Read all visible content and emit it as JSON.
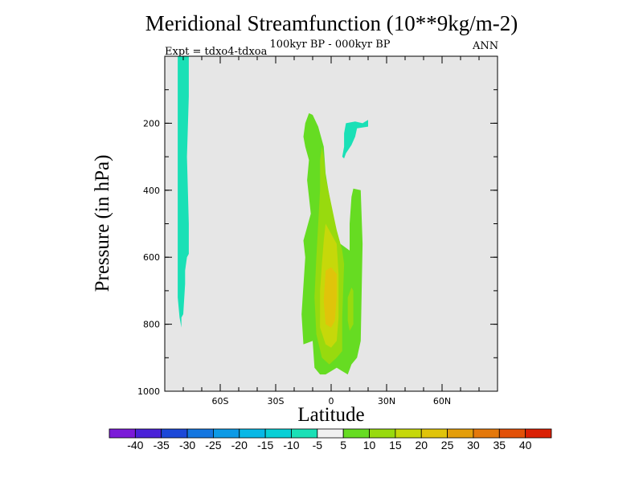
{
  "chart_data": {
    "type": "contour",
    "title": "Meridional Streamfunction (10**9kg/m-2)",
    "subtitle_center": "100kyr BP - 000kyr BP",
    "subtitle_left": "Expt = tdxo4-tdxoa",
    "subtitle_right": "ANN",
    "xlabel": "Latitude",
    "ylabel": "Pressure (in hPa)",
    "xlim": [
      -90,
      90
    ],
    "ylim": [
      1000,
      0
    ],
    "x_ticks": [
      {
        "value": -60,
        "label": "60S"
      },
      {
        "value": -30,
        "label": "30S"
      },
      {
        "value": 0,
        "label": "0"
      },
      {
        "value": 30,
        "label": "30N"
      },
      {
        "value": 60,
        "label": "60N"
      }
    ],
    "y_ticks": [
      {
        "value": 200,
        "label": "200"
      },
      {
        "value": 400,
        "label": "400"
      },
      {
        "value": 600,
        "label": "600"
      },
      {
        "value": 800,
        "label": "800"
      },
      {
        "value": 1000,
        "label": "1000"
      }
    ],
    "background_color": "#e6e6e6",
    "levels": [
      -40,
      -35,
      -30,
      -25,
      -20,
      -15,
      -10,
      -5,
      5,
      10,
      15,
      20,
      25,
      30,
      35,
      40
    ],
    "level_labels": [
      "-40",
      "-35",
      "-30",
      "-25",
      "-20",
      "-15",
      "-10",
      "-5",
      "5",
      "10",
      "15",
      "20",
      "25",
      "30",
      "35",
      "40"
    ],
    "colors": [
      "#7b1ad8",
      "#4a22d8",
      "#1c48d8",
      "#1476e0",
      "#0c9ae6",
      "#08b8e6",
      "#08cfd6",
      "#1ae0b6",
      "#f0f0f0",
      "#66dc22",
      "#98da0e",
      "#c6d80a",
      "#e0c40a",
      "#e49e0a",
      "#e4780a",
      "#e25008",
      "#da2004"
    ],
    "regions": [
      {
        "name": "SH high-lat negative cell",
        "level_range": [
          -10,
          -5
        ],
        "points": [
          [
            -83,
            0
          ],
          [
            -77,
            0
          ],
          [
            -77,
            120
          ],
          [
            -78,
            300
          ],
          [
            -77,
            500
          ],
          [
            -77,
            590
          ],
          [
            -78,
            600
          ],
          [
            -79,
            640
          ],
          [
            -79,
            680
          ],
          [
            -80,
            770
          ],
          [
            -81,
            780
          ],
          [
            -81,
            810
          ],
          [
            -82,
            780
          ],
          [
            -83,
            720
          ],
          [
            -83,
            680
          ],
          [
            -83,
            400
          ]
        ]
      },
      {
        "name": "NH upper negative cell",
        "level_range": [
          -10,
          -5
        ],
        "points": [
          [
            8,
            200
          ],
          [
            13,
            195
          ],
          [
            17,
            200
          ],
          [
            20,
            190
          ],
          [
            20,
            210
          ],
          [
            14,
            215
          ],
          [
            13,
            240
          ],
          [
            11,
            265
          ],
          [
            8,
            290
          ],
          [
            7,
            305
          ],
          [
            6,
            300
          ],
          [
            7,
            270
          ],
          [
            7,
            230
          ]
        ]
      },
      {
        "name": "main positive cell",
        "level_range": [
          5,
          10
        ],
        "points": [
          [
            -15,
            240
          ],
          [
            -14,
            200
          ],
          [
            -12,
            170
          ],
          [
            -10,
            175
          ],
          [
            -7,
            210
          ],
          [
            -4,
            270
          ],
          [
            -3,
            350
          ],
          [
            0,
            450
          ],
          [
            3,
            520
          ],
          [
            5,
            560
          ],
          [
            10,
            580
          ],
          [
            10,
            500
          ],
          [
            11,
            420
          ],
          [
            12,
            395
          ],
          [
            16,
            400
          ],
          [
            17,
            560
          ],
          [
            16,
            850
          ],
          [
            14,
            900
          ],
          [
            11,
            920
          ],
          [
            9,
            950
          ],
          [
            6,
            940
          ],
          [
            3,
            930
          ],
          [
            0,
            940
          ],
          [
            -3,
            950
          ],
          [
            -6,
            950
          ],
          [
            -9,
            930
          ],
          [
            -10,
            850
          ],
          [
            -15,
            860
          ],
          [
            -16,
            770
          ],
          [
            -14,
            600
          ],
          [
            -15,
            550
          ],
          [
            -11,
            470
          ],
          [
            -13,
            370
          ],
          [
            -12,
            310
          ],
          [
            -14,
            270
          ]
        ]
      },
      {
        "name": "positive core 10-15",
        "level_range": [
          10,
          15
        ],
        "points": [
          [
            -6,
            310
          ],
          [
            -5,
            270
          ],
          [
            -4,
            300
          ],
          [
            -3,
            360
          ],
          [
            0,
            440
          ],
          [
            3,
            520
          ],
          [
            6,
            580
          ],
          [
            7,
            620
          ],
          [
            6,
            780
          ],
          [
            6,
            880
          ],
          [
            3,
            900
          ],
          [
            -1,
            920
          ],
          [
            -5,
            900
          ],
          [
            -8,
            830
          ],
          [
            -9,
            720
          ],
          [
            -8,
            600
          ],
          [
            -7,
            500
          ],
          [
            -6,
            400
          ]
        ]
      },
      {
        "name": "positive core 15-20",
        "level_range": [
          15,
          20
        ],
        "points": [
          [
            -4,
            550
          ],
          [
            -3,
            500
          ],
          [
            0,
            530
          ],
          [
            3,
            560
          ],
          [
            4,
            650
          ],
          [
            4,
            780
          ],
          [
            3,
            850
          ],
          [
            0,
            870
          ],
          [
            -3,
            860
          ],
          [
            -6,
            810
          ],
          [
            -6,
            700
          ],
          [
            -5,
            620
          ]
        ]
      },
      {
        "name": "positive core 20-25",
        "level_range": [
          20,
          25
        ],
        "points": [
          [
            -3,
            640
          ],
          [
            0,
            630
          ],
          [
            3,
            650
          ],
          [
            3,
            720
          ],
          [
            2,
            790
          ],
          [
            0,
            810
          ],
          [
            -3,
            800
          ],
          [
            -4,
            730
          ]
        ]
      },
      {
        "name": "NE side lobe",
        "level_range": [
          10,
          15
        ],
        "points": [
          [
            9,
            720
          ],
          [
            11,
            690
          ],
          [
            12,
            700
          ],
          [
            12,
            800
          ],
          [
            10,
            820
          ],
          [
            9,
            790
          ]
        ]
      }
    ]
  }
}
